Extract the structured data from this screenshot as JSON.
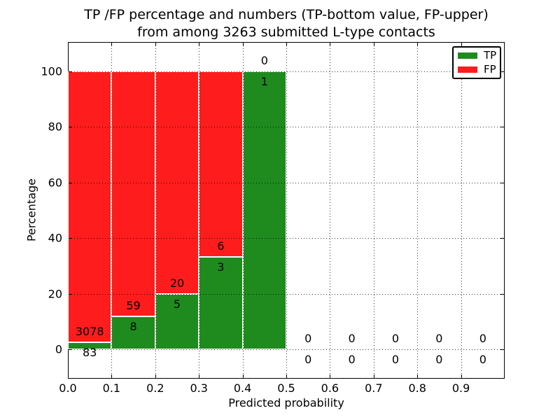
{
  "title": {
    "line1": "TP /FP percentage and numbers (TP-bottom value, FP-upper)",
    "line2": "from among 3263 submitted L-type contacts"
  },
  "chart_data": {
    "type": "bar",
    "stacked": true,
    "title": "TP /FP percentage and numbers (TP-bottom value, FP-upper) from among 3263 submitted L-type contacts",
    "xlabel": "Predicted probability",
    "ylabel": "Percentage",
    "xlim": [
      0.0,
      1.0
    ],
    "ylim": [
      -10.5,
      110.5
    ],
    "grid": true,
    "total_submitted": 3263,
    "xticks": {
      "values": [
        0.0,
        0.1,
        0.2,
        0.3,
        0.4,
        0.5,
        0.6,
        0.7,
        0.8,
        0.9
      ],
      "labels": [
        "0.0",
        "0.1",
        "0.2",
        "0.3",
        "0.4",
        "0.5",
        "0.6",
        "0.7",
        "0.8",
        "0.9"
      ]
    },
    "yticks": {
      "values": [
        0,
        20,
        40,
        60,
        80,
        100
      ],
      "labels": [
        "0",
        "20",
        "40",
        "60",
        "80",
        "100"
      ]
    },
    "colors": {
      "tp": "#1f8b1f",
      "fp": "#ff1c1c",
      "edge": "#ffffff"
    },
    "legend": {
      "position": "upper right",
      "entries": [
        {
          "label": "TP",
          "color": "#1f8b1f"
        },
        {
          "label": "FP",
          "color": "#ff1c1c"
        }
      ]
    },
    "bins": [
      {
        "range": [
          0.0,
          0.1
        ],
        "tp": 83,
        "fp": 3078,
        "tp_pct": 2.63,
        "fp_pct": 97.37
      },
      {
        "range": [
          0.1,
          0.2
        ],
        "tp": 8,
        "fp": 59,
        "tp_pct": 11.94,
        "fp_pct": 88.06
      },
      {
        "range": [
          0.2,
          0.3
        ],
        "tp": 5,
        "fp": 20,
        "tp_pct": 20.0,
        "fp_pct": 80.0
      },
      {
        "range": [
          0.3,
          0.4
        ],
        "tp": 3,
        "fp": 6,
        "tp_pct": 33.33,
        "fp_pct": 66.67
      },
      {
        "range": [
          0.4,
          0.5
        ],
        "tp": 1,
        "fp": 0,
        "tp_pct": 100.0,
        "fp_pct": 0.0
      },
      {
        "range": [
          0.5,
          0.6
        ],
        "tp": 0,
        "fp": 0,
        "tp_pct": 0.0,
        "fp_pct": 0.0
      },
      {
        "range": [
          0.6,
          0.7
        ],
        "tp": 0,
        "fp": 0,
        "tp_pct": 0.0,
        "fp_pct": 0.0
      },
      {
        "range": [
          0.7,
          0.8
        ],
        "tp": 0,
        "fp": 0,
        "tp_pct": 0.0,
        "fp_pct": 0.0
      },
      {
        "range": [
          0.8,
          0.9
        ],
        "tp": 0,
        "fp": 0,
        "tp_pct": 0.0,
        "fp_pct": 0.0
      },
      {
        "range": [
          0.9,
          1.0
        ],
        "tp": 0,
        "fp": 0,
        "tp_pct": 0.0,
        "fp_pct": 0.0
      }
    ]
  }
}
